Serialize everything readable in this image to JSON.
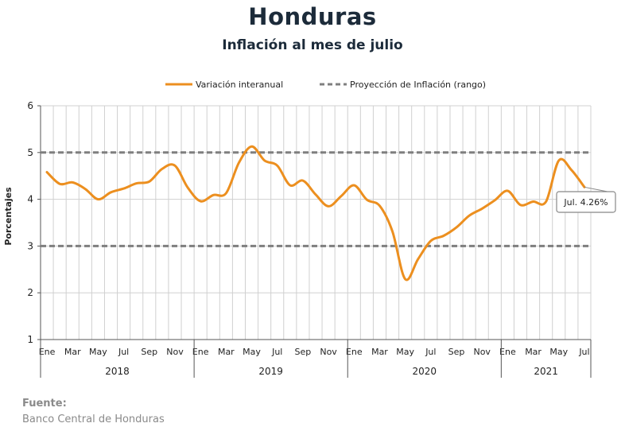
{
  "title": "Honduras",
  "subtitle": "Inflación al mes de julio",
  "source": {
    "label": "Fuente:",
    "text": "Banco Central de Honduras"
  },
  "colors": {
    "series": "#ec8f1f",
    "projection": "#7f7f7f",
    "grid": "#d0d0d0",
    "axis": "#555555"
  },
  "chart_data": {
    "type": "line",
    "ylabel": "Porcentajes",
    "ylim": [
      1,
      6
    ],
    "yticks": [
      "1",
      "2",
      "3",
      "4",
      "5",
      "6"
    ],
    "legend_position": "top",
    "grid": true,
    "x_month_labels": [
      "Ene",
      "Mar",
      "May",
      "Jul",
      "Sep",
      "Nov",
      "Ene",
      "Mar",
      "May",
      "Jul",
      "Sep",
      "Nov",
      "Ene",
      "Mar",
      "May",
      "Jul",
      "Sep",
      "Nov",
      "Ene",
      "Mar",
      "May",
      "Jul"
    ],
    "x_month_label_index": [
      0,
      2,
      4,
      6,
      8,
      10,
      12,
      14,
      16,
      18,
      20,
      22,
      24,
      26,
      28,
      30,
      32,
      34,
      36,
      38,
      40,
      42
    ],
    "years": [
      {
        "label": "2018",
        "start": 0,
        "end": 11
      },
      {
        "label": "2019",
        "start": 12,
        "end": 23
      },
      {
        "label": "2020",
        "start": 24,
        "end": 35
      },
      {
        "label": "2021",
        "start": 36,
        "end": 42
      }
    ],
    "series": [
      {
        "name": "Variación interanual",
        "values": [
          4.58,
          4.33,
          4.36,
          4.22,
          4.0,
          4.15,
          4.23,
          4.34,
          4.38,
          4.65,
          4.72,
          4.25,
          3.96,
          4.09,
          4.13,
          4.78,
          5.13,
          4.83,
          4.72,
          4.3,
          4.4,
          4.1,
          3.85,
          4.07,
          4.3,
          3.99,
          3.86,
          3.31,
          2.29,
          2.72,
          3.11,
          3.22,
          3.4,
          3.65,
          3.8,
          3.98,
          4.18,
          3.88,
          3.95,
          3.95,
          4.83,
          4.62,
          4.26
        ]
      },
      {
        "name": "Proyección de Inflación (rango)",
        "range": [
          3,
          5
        ]
      }
    ],
    "annotation": {
      "text": "Jul. 4.26%",
      "index": 42,
      "value": 4.26
    }
  }
}
